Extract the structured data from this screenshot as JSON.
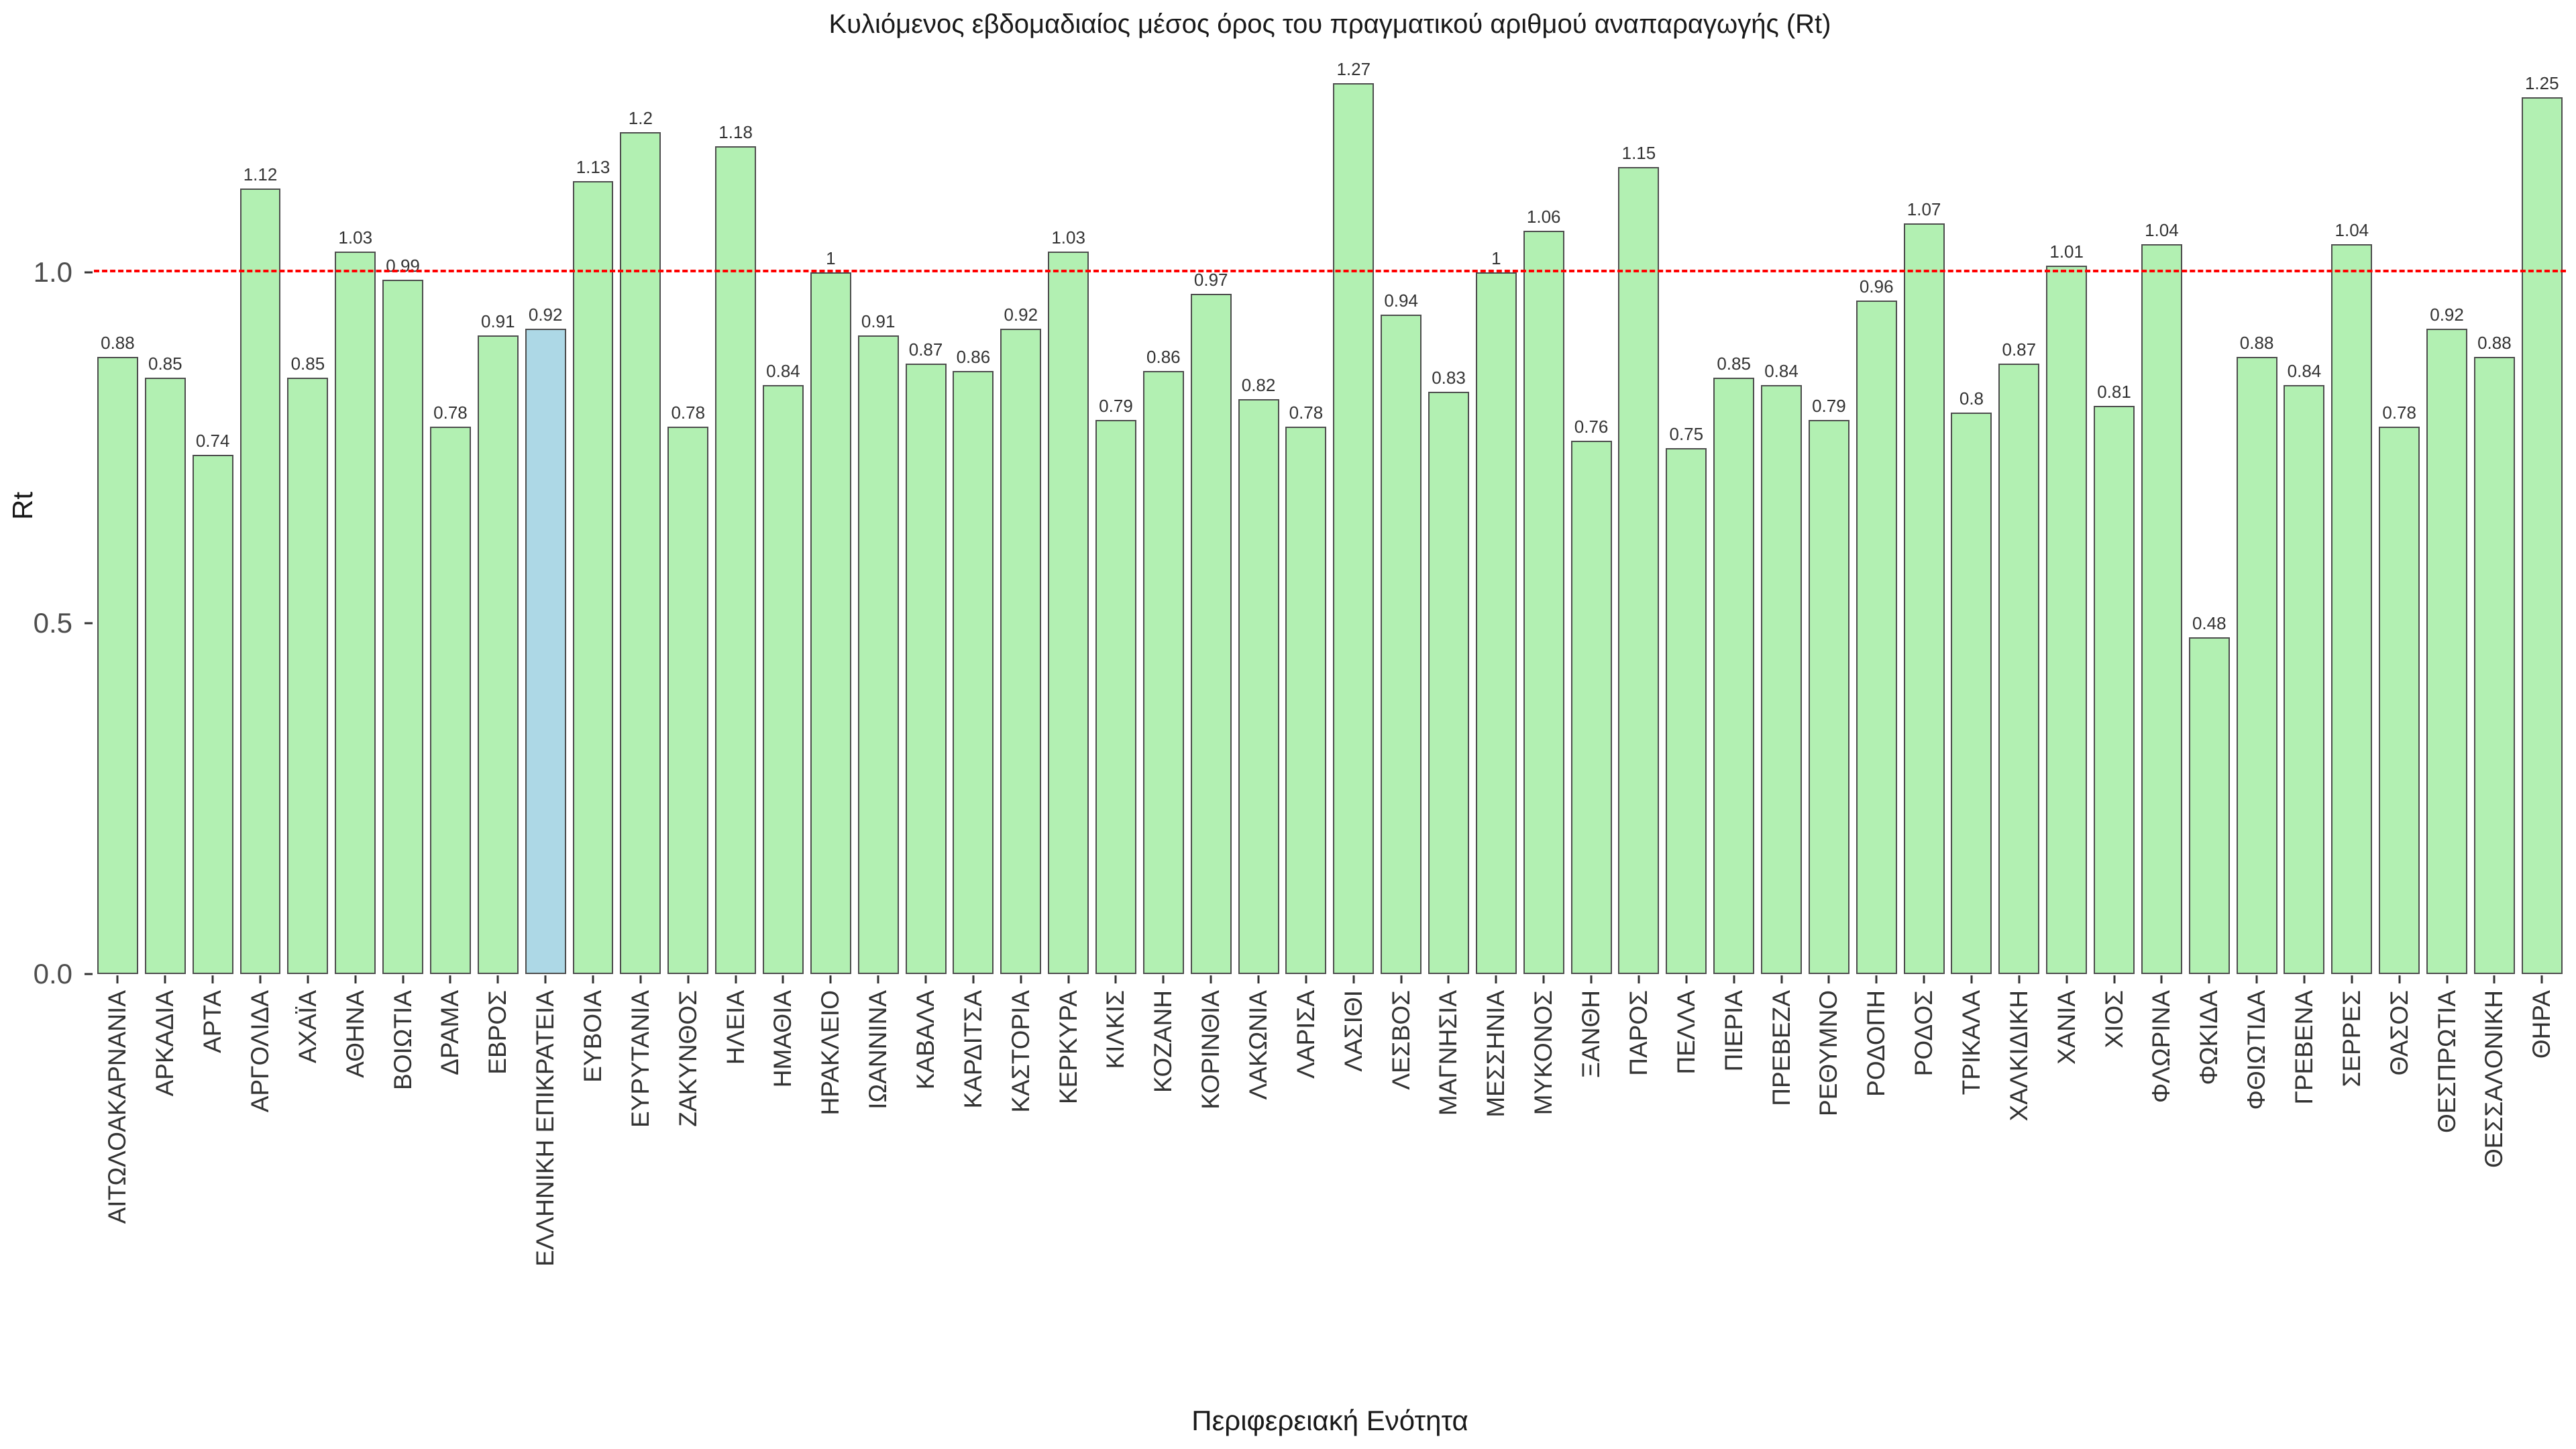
{
  "chart_data": {
    "type": "bar",
    "title": "Κυλιόμενος εβδομαδιαίος μέσος όρος του πραγματικού αριθμού αναπαραγωγής (Rt)",
    "xlabel": "Περιφερειακή Ενότητα",
    "ylabel": "Rt",
    "ylim": [
      0,
      1.335
    ],
    "yticks": [
      {
        "label": "0.0",
        "value": 0
      },
      {
        "label": "0.5",
        "value": 0.5
      },
      {
        "label": "1.0",
        "value": 1.0
      }
    ],
    "grid": false,
    "legend": false,
    "reference_line": {
      "value": 1.0,
      "color": "#ff0000",
      "style": "dashed"
    },
    "highlight_category": "ΕΛΛΗΝΙΚΗ ΕΠΙΚΡΑΤΕΙΑ",
    "colors": {
      "bar_fill": "#b2f0b2",
      "bar_border": "#4d4d4d",
      "highlight_fill": "#add8e6",
      "highlight_border": "#4d4d4d"
    },
    "categories": [
      "ΑΙΤΩΛΟΑΚΑΡΝΑΝΙΑ",
      "ΑΡΚΑΔΙΑ",
      "ΑΡΤΑ",
      "ΑΡΓΟΛΙΔΑ",
      "ΑΧΑΪΑ",
      "ΑΘΗΝΑ",
      "ΒΟΙΩΤΙΑ",
      "ΔΡΑΜΑ",
      "ΕΒΡΟΣ",
      "ΕΛΛΗΝΙΚΗ ΕΠΙΚΡΑΤΕΙΑ",
      "ΕΥΒΟΙΑ",
      "ΕΥΡΥΤΑΝΙΑ",
      "ΖΑΚΥΝΘΟΣ",
      "ΗΛΕΙΑ",
      "ΗΜΑΘΙΑ",
      "ΗΡΑΚΛΕΙΟ",
      "ΙΩΑΝΝΙΝΑ",
      "ΚΑΒΑΛΑ",
      "ΚΑΡΔΙΤΣΑ",
      "ΚΑΣΤΟΡΙΑ",
      "ΚΕΡΚΥΡΑ",
      "ΚΙΛΚΙΣ",
      "ΚΟΖΑΝΗ",
      "ΚΟΡΙΝΘΙΑ",
      "ΛΑΚΩΝΙΑ",
      "ΛΑΡΙΣΑ",
      "ΛΑΣΙΘΙ",
      "ΛΕΣΒΟΣ",
      "ΜΑΓΝΗΣΙΑ",
      "ΜΕΣΣΗΝΙΑ",
      "ΜΥΚΟΝΟΣ",
      "ΞΑΝΘΗ",
      "ΠΑΡΟΣ",
      "ΠΕΛΛΑ",
      "ΠΙΕΡΙΑ",
      "ΠΡΕΒΕΖΑ",
      "ΡΕΘΥΜΝΟ",
      "ΡΟΔΟΠΗ",
      "ΡΟΔΟΣ",
      "ΤΡΙΚΑΛΑ",
      "ΧΑΛΚΙΔΙΚΗ",
      "ΧΑΝΙΑ",
      "ΧΙΟΣ",
      "ΦΛΩΡΙΝΑ",
      "ΦΩΚΙΔΑ",
      "ΦΘΙΩΤΙΔΑ",
      "ΓΡΕΒΕΝΑ",
      "ΣΕΡΡΕΣ",
      "ΘΑΣΟΣ",
      "ΘΕΣΠΡΩΤΙΑ",
      "ΘΕΣΣΑΛΟΝΙΚΗ",
      "ΘΗΡΑ"
    ],
    "values": [
      0.88,
      0.85,
      0.74,
      1.12,
      0.85,
      1.03,
      0.99,
      0.78,
      0.91,
      0.92,
      1.13,
      1.2,
      0.78,
      1.18,
      0.84,
      1.0,
      0.91,
      0.87,
      0.86,
      0.92,
      1.03,
      0.79,
      0.86,
      0.97,
      0.82,
      0.78,
      1.27,
      0.94,
      0.83,
      1.0,
      1.06,
      0.76,
      1.15,
      0.75,
      0.85,
      0.84,
      0.79,
      0.96,
      1.07,
      0.8,
      0.87,
      1.01,
      0.81,
      1.04,
      0.48,
      0.88,
      0.84,
      1.04,
      0.78,
      0.92,
      0.88,
      1.25
    ],
    "value_labels": [
      "0.88",
      "0.85",
      "0.74",
      "1.12",
      "0.85",
      "1.03",
      "0.99",
      "0.78",
      "0.91",
      "0.92",
      "1.13",
      "1.2",
      "0.78",
      "1.18",
      "0.84",
      "1",
      "0.91",
      "0.87",
      "0.86",
      "0.92",
      "1.03",
      "0.79",
      "0.86",
      "0.97",
      "0.82",
      "0.78",
      "1.27",
      "0.94",
      "0.83",
      "1",
      "1.06",
      "0.76",
      "1.15",
      "0.75",
      "0.85",
      "0.84",
      "0.79",
      "0.96",
      "1.07",
      "0.8",
      "0.87",
      "1.01",
      "0.81",
      "1.04",
      "0.48",
      "0.88",
      "0.84",
      "1.04",
      "0.78",
      "0.92",
      "0.88",
      "1.25"
    ]
  }
}
